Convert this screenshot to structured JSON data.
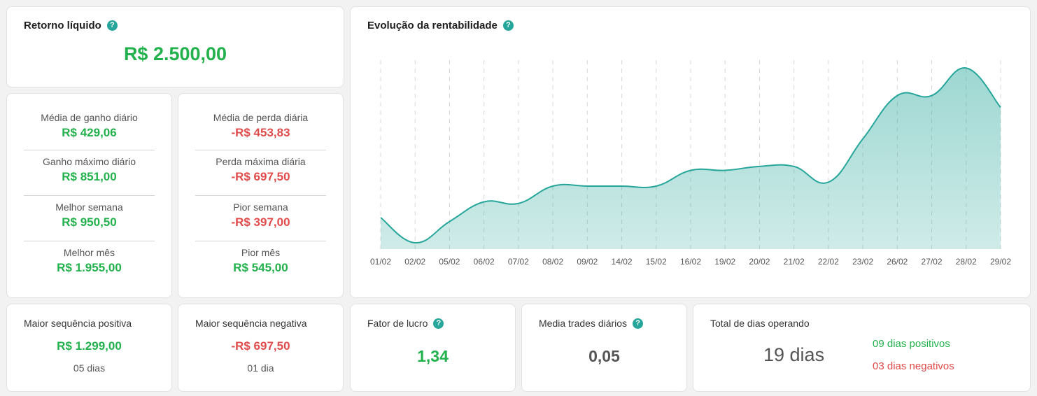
{
  "retorno": {
    "title": "Retorno líquido",
    "help_icon": "?",
    "value": "R$ 2.500,00"
  },
  "gains": [
    {
      "label": "Média de ganho diário",
      "value": "R$ 429,06"
    },
    {
      "label": "Ganho máximo diário",
      "value": "R$ 851,00"
    },
    {
      "label": "Melhor semana",
      "value": "R$ 950,50"
    },
    {
      "label": "Melhor mês",
      "value": "R$ 1.955,00"
    }
  ],
  "losses": [
    {
      "label": "Média de perda diária",
      "value": "-R$ 453,83",
      "color": "red"
    },
    {
      "label": "Perda máxima diária",
      "value": "-R$ 697,50",
      "color": "red"
    },
    {
      "label": "Pior semana",
      "value": "-R$ 397,00",
      "color": "red"
    },
    {
      "label": "Pior mês",
      "value": "R$ 545,00",
      "color": "green"
    }
  ],
  "chart": {
    "title": "Evolução da rentabilidade",
    "help_icon": "?"
  },
  "chart_data": {
    "type": "area",
    "title": "Evolução da rentabilidade",
    "categories": [
      "01/02",
      "02/02",
      "05/02",
      "06/02",
      "07/02",
      "08/02",
      "09/02",
      "14/02",
      "15/02",
      "16/02",
      "19/02",
      "20/02",
      "21/02",
      "22/02",
      "23/02",
      "26/02",
      "27/02",
      "28/02",
      "29/02"
    ],
    "values": [
      400,
      80,
      350,
      600,
      580,
      800,
      800,
      800,
      800,
      1000,
      1000,
      1050,
      1050,
      850,
      1400,
      1950,
      1950,
      2300,
      1800
    ],
    "ylim": [
      0,
      2400
    ],
    "grid": "vertical dashed",
    "color": "#26a69a",
    "fill": "#a8dbd5"
  },
  "sequences": {
    "positive": {
      "title": "Maior sequência positiva",
      "value": "R$ 1.299,00",
      "days": "05 dias"
    },
    "negative": {
      "title": "Maior sequência negativa",
      "value": "-R$ 697,50",
      "days": "01 dia"
    }
  },
  "fator": {
    "title": "Fator de lucro",
    "help_icon": "?",
    "value": "1,34"
  },
  "media_trades": {
    "title": "Media trades diários",
    "help_icon": "?",
    "value": "0,05"
  },
  "total_dias": {
    "title": "Total de dias operando",
    "value": "19 dias",
    "positive": "09 dias positivos",
    "negative": "03 dias negativos"
  },
  "colors": {
    "green": "#22b14c",
    "red": "#e04b4b",
    "accent": "#26a69a"
  }
}
